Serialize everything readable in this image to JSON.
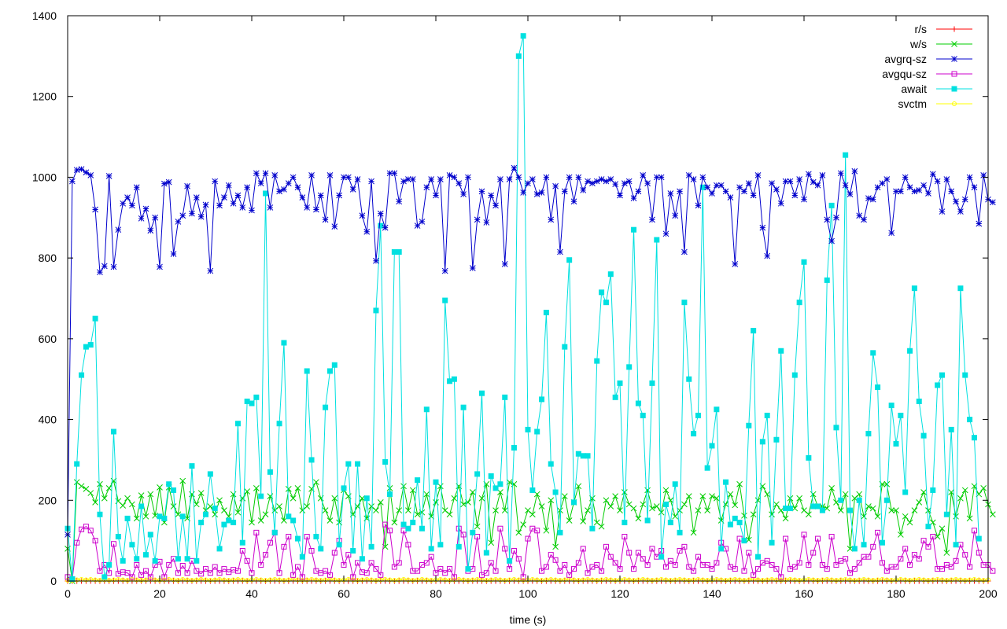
{
  "chart_data": {
    "type": "line",
    "title": "",
    "xlabel": "time (s)",
    "ylabel": "",
    "xlim": [
      0,
      200
    ],
    "ylim": [
      0,
      1400
    ],
    "x_ticks": [
      0,
      20,
      40,
      60,
      80,
      100,
      120,
      140,
      160,
      180,
      200
    ],
    "y_ticks": [
      0,
      200,
      400,
      600,
      800,
      1000,
      1200,
      1400
    ],
    "grid": false,
    "legend_position": "top-right",
    "x_step": 1,
    "series": [
      {
        "name": "r/s",
        "color": "#ff0000",
        "marker": "plus",
        "values": [
          0,
          0,
          0,
          0,
          0,
          0,
          0,
          0,
          0,
          0,
          0,
          0,
          0,
          0,
          0,
          0,
          0,
          0,
          0,
          0,
          0,
          0,
          0,
          0,
          0,
          0,
          0,
          0,
          0,
          0,
          0,
          0,
          0,
          0,
          0,
          0,
          0,
          0,
          0,
          0,
          0,
          0,
          0,
          0,
          0,
          0,
          0,
          0,
          0,
          0,
          0,
          0,
          0,
          0,
          0,
          0,
          0,
          0,
          0,
          0,
          0,
          0,
          0,
          0,
          0,
          0,
          0,
          0,
          0,
          0,
          0,
          0,
          0,
          0,
          0,
          0,
          0,
          0,
          0,
          0,
          0,
          0,
          0,
          0,
          0,
          0,
          0,
          0,
          0,
          0,
          0,
          0,
          0,
          0,
          0,
          0,
          0,
          0,
          0,
          0,
          0,
          0,
          0,
          0,
          0,
          0,
          0,
          0,
          0,
          0,
          0,
          0,
          0,
          0,
          0,
          0,
          0,
          0,
          0,
          0,
          0,
          0,
          0,
          0,
          0,
          0,
          0,
          0,
          0,
          0,
          0,
          0,
          0,
          0,
          0,
          0,
          0,
          0,
          0,
          0,
          0,
          0,
          0,
          0,
          0,
          0,
          0,
          0,
          0,
          0,
          0,
          0,
          0,
          0,
          0,
          0,
          0,
          0,
          0,
          0,
          0,
          0,
          0,
          0,
          0,
          0,
          0,
          0,
          0,
          0,
          0,
          0,
          0,
          0,
          0,
          0,
          0,
          0,
          0,
          0,
          0,
          0,
          0,
          0,
          0,
          0,
          0,
          0,
          0,
          0,
          0,
          0,
          0,
          0,
          0,
          0,
          0,
          0,
          0,
          0,
          0
        ]
      },
      {
        "name": "w/s",
        "color": "#00cc00",
        "marker": "cross",
        "values": [
          80,
          0,
          245,
          235,
          228,
          218,
          195,
          240,
          205,
          230,
          248,
          198,
          187,
          205,
          190,
          155,
          212,
          160,
          215,
          162,
          232,
          145,
          232,
          185,
          165,
          248,
          155,
          215,
          190,
          218,
          175,
          185,
          165,
          200,
          175,
          160,
          215,
          170,
          205,
          222,
          145,
          230,
          150,
          165,
          210,
          175,
          185,
          150,
          228,
          205,
          230,
          175,
          185,
          228,
          245,
          205,
          175,
          150,
          205,
          145,
          225,
          210,
          165,
          185,
          205,
          155,
          185,
          175,
          195,
          85,
          230,
          145,
          175,
          235,
          175,
          225,
          165,
          170,
          215,
          160,
          195,
          235,
          175,
          165,
          205,
          235,
          190,
          195,
          220,
          135,
          205,
          240,
          95,
          175,
          220,
          175,
          245,
          240,
          120,
          140,
          175,
          165,
          215,
          185,
          125,
          200,
          85,
          175,
          210,
          150,
          195,
          235,
          148,
          175,
          205,
          145,
          135,
          200,
          185,
          210,
          175,
          220,
          190,
          180,
          155,
          190,
          225,
          180,
          185,
          170,
          225,
          200,
          160,
          175,
          190,
          210,
          120,
          175,
          210,
          175,
          210,
          205,
          150,
          190,
          215,
          188,
          240,
          162,
          102,
          165,
          200,
          235,
          215,
          165,
          190,
          175,
          155,
          205,
          180,
          205,
          175,
          165,
          215,
          185,
          185,
          180,
          230,
          195,
          175,
          215,
          80,
          205,
          215,
          160,
          185,
          180,
          160,
          240,
          240,
          175,
          175,
          115,
          160,
          145,
          175,
          195,
          220,
          175,
          145,
          110,
          130,
          70,
          220,
          160,
          205,
          225,
          155,
          235,
          215,
          230,
          190,
          165
        ]
      },
      {
        "name": "avgrq-sz",
        "color": "#0000cc",
        "marker": "star",
        "values": [
          115,
          990,
          1018,
          1020,
          1012,
          1005,
          920,
          765,
          780,
          1003,
          778,
          870,
          935,
          950,
          930,
          975,
          898,
          922,
          868,
          900,
          778,
          984,
          988,
          810,
          890,
          905,
          978,
          910,
          950,
          902,
          932,
          768,
          990,
          930,
          950,
          980,
          935,
          955,
          925,
          975,
          918,
          1010,
          985,
          1010,
          925,
          1005,
          965,
          970,
          985,
          1000,
          975,
          950,
          925,
          1005,
          920,
          955,
          895,
          1005,
          878,
          955,
          1000,
          1000,
          970,
          995,
          905,
          865,
          990,
          793,
          910,
          875,
          1010,
          1010,
          940,
          990,
          995,
          995,
          880,
          890,
          975,
          995,
          955,
          995,
          768,
          1005,
          1000,
          985,
          958,
          1000,
          775,
          895,
          965,
          888,
          955,
          930,
          995,
          785,
          995,
          1023,
          1000,
          962,
          985,
          995,
          958,
          962,
          1000,
          895,
          978,
          815,
          965,
          1000,
          940,
          1000,
          968,
          990,
          985,
          990,
          995,
          990,
          995,
          983,
          955,
          985,
          990,
          948,
          965,
          1005,
          985,
          895,
          1000,
          1000,
          860,
          960,
          905,
          965,
          815,
          1005,
          995,
          930,
          1000,
          975,
          960,
          980,
          980,
          965,
          950,
          785,
          975,
          965,
          985,
          955,
          1005,
          875,
          805,
          985,
          970,
          935,
          990,
          990,
          955,
          995,
          945,
          1008,
          988,
          980,
          1005,
          895,
          842,
          900,
          1010,
          980,
          958,
          1015,
          905,
          895,
          948,
          945,
          975,
          985,
          995,
          862,
          965,
          965,
          1000,
          975,
          965,
          968,
          980,
          960,
          1008,
          990,
          915,
          995,
          965,
          940,
          915,
          945,
          1000,
          975,
          885,
          1005,
          945,
          938
        ]
      },
      {
        "name": "avgqu-sz",
        "color": "#cc00cc",
        "marker": "square",
        "values": [
          10,
          5,
          95,
          128,
          135,
          125,
          100,
          25,
          40,
          20,
          92,
          18,
          22,
          20,
          10,
          40,
          15,
          25,
          10,
          40,
          48,
          10,
          40,
          55,
          20,
          38,
          20,
          50,
          25,
          18,
          30,
          20,
          35,
          20,
          30,
          22,
          28,
          25,
          75,
          50,
          20,
          120,
          40,
          65,
          95,
          120,
          20,
          85,
          110,
          15,
          35,
          10,
          110,
          75,
          25,
          20,
          25,
          15,
          70,
          100,
          40,
          65,
          10,
          45,
          22,
          20,
          45,
          30,
          15,
          140,
          125,
          35,
          45,
          125,
          90,
          25,
          25,
          40,
          45,
          60,
          20,
          30,
          20,
          30,
          10,
          130,
          115,
          25,
          30,
          110,
          15,
          20,
          45,
          25,
          130,
          80,
          30,
          75,
          55,
          10,
          105,
          130,
          125,
          25,
          35,
          65,
          52,
          25,
          40,
          15,
          30,
          45,
          80,
          20,
          35,
          40,
          25,
          85,
          60,
          45,
          30,
          110,
          70,
          30,
          70,
          55,
          40,
          80,
          60,
          75,
          35,
          50,
          40,
          75,
          85,
          35,
          25,
          60,
          40,
          40,
          30,
          45,
          95,
          80,
          35,
          30,
          105,
          25,
          70,
          15,
          30,
          45,
          50,
          40,
          30,
          10,
          105,
          30,
          35,
          45,
          115,
          40,
          70,
          105,
          40,
          30,
          110,
          40,
          50,
          55,
          20,
          30,
          45,
          60,
          60,
          85,
          120,
          45,
          25,
          35,
          35,
          55,
          80,
          40,
          65,
          55,
          100,
          85,
          110,
          30,
          30,
          40,
          35,
          50,
          90,
          65,
          35,
          125,
          70,
          40,
          40,
          25
        ]
      },
      {
        "name": "await",
        "color": "#00e0e0",
        "marker": "filled-square",
        "values": [
          130,
          5,
          290,
          510,
          580,
          585,
          650,
          165,
          10,
          40,
          370,
          110,
          50,
          155,
          90,
          55,
          185,
          65,
          115,
          50,
          160,
          155,
          240,
          225,
          55,
          160,
          55,
          285,
          50,
          145,
          165,
          265,
          180,
          80,
          140,
          150,
          145,
          390,
          95,
          445,
          440,
          455,
          210,
          960,
          270,
          120,
          390,
          590,
          160,
          150,
          105,
          60,
          520,
          300,
          110,
          80,
          430,
          520,
          535,
          90,
          230,
          290,
          75,
          290,
          55,
          205,
          85,
          670,
          880,
          295,
          215,
          815,
          815,
          140,
          130,
          145,
          250,
          130,
          425,
          80,
          245,
          90,
          695,
          495,
          500,
          85,
          430,
          30,
          120,
          265,
          465,
          70,
          260,
          230,
          240,
          455,
          50,
          330,
          1300,
          1350,
          375,
          225,
          370,
          450,
          665,
          290,
          220,
          120,
          580,
          795,
          195,
          315,
          310,
          310,
          130,
          545,
          715,
          690,
          760,
          455,
          490,
          145,
          530,
          870,
          440,
          410,
          150,
          490,
          845,
          60,
          190,
          145,
          240,
          120,
          690,
          500,
          365,
          410,
          975,
          280,
          335,
          425,
          80,
          245,
          140,
          155,
          145,
          100,
          385,
          620,
          60,
          345,
          410,
          95,
          350,
          570,
          180,
          180,
          510,
          690,
          790,
          305,
          185,
          185,
          175,
          745,
          930,
          380,
          200,
          1055,
          175,
          80,
          200,
          90,
          365,
          565,
          480,
          95,
          200,
          435,
          340,
          410,
          220,
          570,
          725,
          445,
          360,
          135,
          225,
          485,
          510,
          165,
          375,
          90,
          725,
          510,
          400,
          355,
          105
        ]
      },
      {
        "name": "svctm",
        "color": "#ffff00",
        "marker": "circle",
        "values": [
          2,
          2,
          3,
          4,
          3,
          4,
          3,
          2,
          3,
          2,
          3,
          4,
          3,
          2,
          4,
          3,
          2,
          3,
          4,
          3,
          2,
          3,
          4,
          3,
          2,
          4,
          3,
          2,
          3,
          4,
          3,
          2,
          3,
          4,
          3,
          2,
          3,
          4,
          3,
          2,
          3,
          4,
          3,
          2,
          3,
          4,
          3,
          2,
          3,
          4,
          3,
          2,
          3,
          4,
          3,
          2,
          3,
          4,
          3,
          2,
          3,
          4,
          3,
          2,
          3,
          4,
          3,
          2,
          3,
          4,
          3,
          2,
          3,
          4,
          3,
          2,
          3,
          4,
          3,
          2,
          3,
          4,
          3,
          2,
          3,
          4,
          3,
          2,
          3,
          4,
          3,
          2,
          3,
          4,
          3,
          2,
          3,
          4,
          3,
          2,
          3,
          4,
          3,
          2,
          3,
          4,
          3,
          2,
          3,
          4,
          3,
          2,
          3,
          4,
          3,
          2,
          3,
          4,
          3,
          2,
          3,
          4,
          3,
          2,
          3,
          4,
          3,
          2,
          3,
          4,
          3,
          2,
          3,
          4,
          3,
          2,
          3,
          4,
          3,
          2,
          3,
          4,
          3,
          2,
          3,
          4,
          3,
          2,
          3,
          4,
          3,
          2,
          3,
          4,
          3,
          2,
          3,
          4,
          3,
          2,
          3,
          4,
          3,
          2,
          3,
          4,
          3,
          2,
          3,
          4,
          3,
          2,
          3,
          4,
          3,
          2,
          3,
          4,
          3,
          2,
          3,
          4,
          3,
          2,
          3,
          4,
          3,
          2,
          3,
          4,
          3,
          2,
          3,
          4,
          3,
          2,
          3,
          4,
          3,
          2,
          3
        ]
      }
    ]
  }
}
